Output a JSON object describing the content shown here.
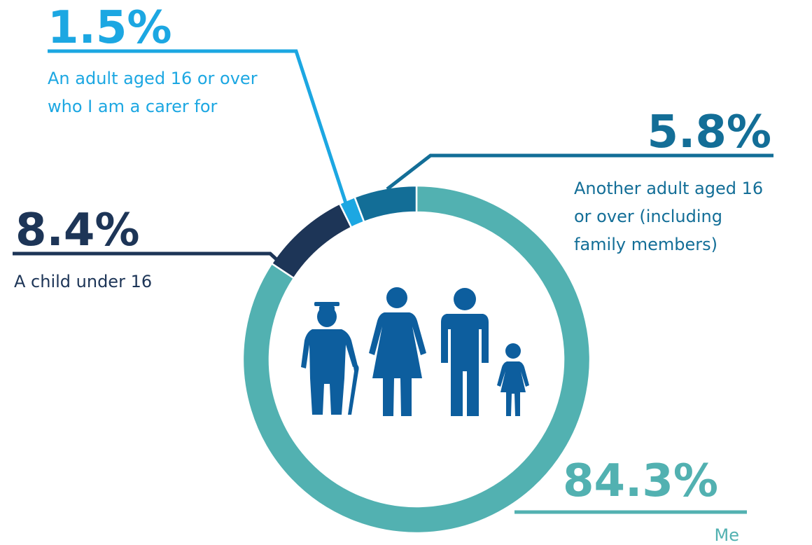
{
  "chart_data": {
    "type": "pie",
    "style": "donut",
    "categories": [
      "Me",
      "A child under 16",
      "An adult aged 16 or over who I am a carer for",
      "Another adult aged 16 or over (including family members)"
    ],
    "values": [
      84.3,
      8.4,
      1.5,
      5.8
    ],
    "colors": [
      "#52b1b1",
      "#1d3557",
      "#1ca7e2",
      "#136e97"
    ],
    "labels": [
      {
        "value": "84.3%",
        "lines": [
          "Me"
        ]
      },
      {
        "value": "8.4%",
        "lines": [
          "A child under 16"
        ]
      },
      {
        "value": "1.5%",
        "lines": [
          "An adult aged 16 or over",
          "who I am a carer for"
        ]
      },
      {
        "value": "5.8%",
        "lines": [
          "Another adult aged 16",
          "or over (including",
          "family members)"
        ]
      }
    ]
  },
  "centre_icon": {
    "name": "family-icon",
    "color": "#0d5e9e",
    "figures": [
      "elderly-man-with-cane",
      "woman",
      "man",
      "child"
    ]
  }
}
